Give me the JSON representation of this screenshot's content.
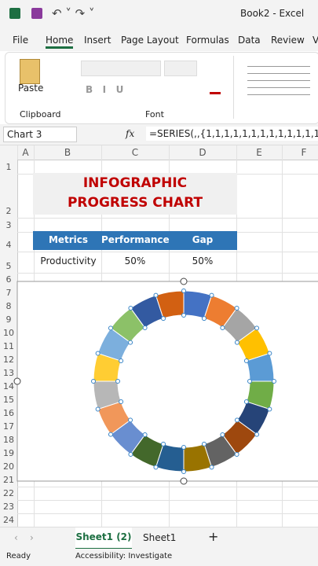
{
  "title_bar": {
    "file_name": "Book2 - Excel"
  },
  "ribbon_tabs": [
    "File",
    "Home",
    "Insert",
    "Page Layout",
    "Formulas",
    "Data",
    "Review",
    "V"
  ],
  "ribbon_groups": {
    "clipboard": "Clipboard",
    "paste": "Paste",
    "font": "Font"
  },
  "formula_bar": {
    "name_box": "Chart 3",
    "fx": "fx",
    "formula": "=SERIES(,,{1,1,1,1,1,1,1,1,1,1,1,1,1,1,1,1,1,1"
  },
  "columns": [
    "A",
    "B",
    "C",
    "D",
    "E",
    "F"
  ],
  "rows": [
    "1",
    "2",
    "3",
    "4",
    "5",
    "6",
    "7",
    "8",
    "9",
    "10",
    "11",
    "12",
    "13",
    "14",
    "15",
    "16",
    "17",
    "18",
    "19",
    "20",
    "21",
    "22",
    "23",
    "24"
  ],
  "sheet": {
    "title_lines": [
      "INFOGRAPHIC",
      "PROGRESS CHART"
    ],
    "table": {
      "header": [
        "Metrics",
        "Performance",
        "Gap"
      ],
      "rows": [
        [
          "Productivity",
          "50%",
          "50%"
        ]
      ]
    }
  },
  "chart_data": {
    "type": "doughnut",
    "values": [
      1,
      1,
      1,
      1,
      1,
      1,
      1,
      1,
      1,
      1,
      1,
      1,
      1,
      1,
      1,
      1,
      1,
      1,
      1,
      1
    ],
    "colors": [
      "#4472c4",
      "#ed7d31",
      "#a5a5a5",
      "#ffc000",
      "#5b9bd5",
      "#70ad47",
      "#264478",
      "#9e480e",
      "#636363",
      "#997300",
      "#255e91",
      "#43682b",
      "#698ed0",
      "#f1975a",
      "#b7b7b7",
      "#ffcd33",
      "#7cafdd",
      "#8cc168",
      "#335aa1",
      "#d26012"
    ]
  },
  "sheet_tabs": [
    "Sheet1 (2)",
    "Sheet1"
  ],
  "status_bar": {
    "ready": "Ready",
    "accessibility": "Accessibility: Investigate"
  }
}
